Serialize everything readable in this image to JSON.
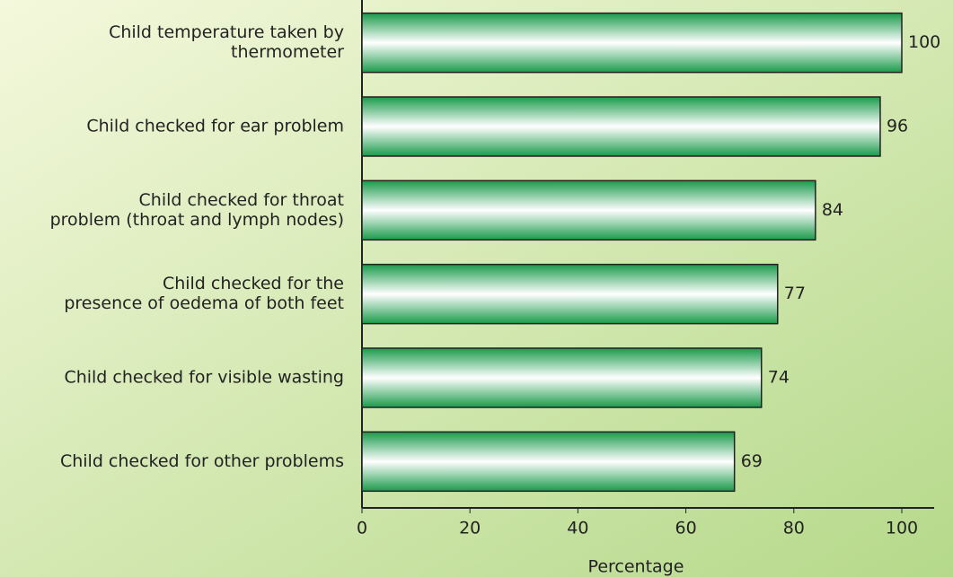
{
  "chart_data": {
    "type": "barh",
    "categories": [
      [
        "Child temperature taken by",
        "thermometer"
      ],
      [
        "Child checked for ear problem"
      ],
      [
        "Child checked for throat",
        "problem (throat and lymph nodes)"
      ],
      [
        "Child checked for the",
        "presence of oedema of both feet"
      ],
      [
        "Child checked for visible wasting"
      ],
      [
        "Child checked for other problems"
      ]
    ],
    "values": [
      100,
      96,
      84,
      77,
      74,
      69
    ],
    "color": "#1a9a4a",
    "xlim": [
      0,
      100
    ],
    "xticks": [
      0,
      20,
      40,
      60,
      80,
      100
    ],
    "x_label": "Percentage"
  }
}
